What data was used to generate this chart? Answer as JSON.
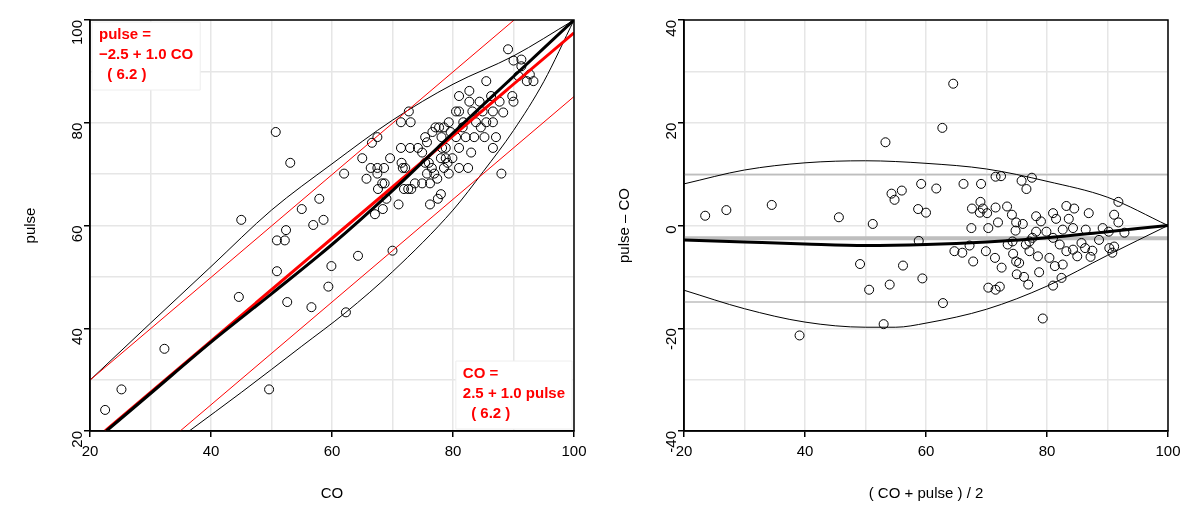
{
  "chart_data": [
    {
      "type": "scatter",
      "xlabel": "CO",
      "ylabel": "pulse",
      "xlim": [
        20,
        100
      ],
      "ylim": [
        20,
        100
      ],
      "xticks": [
        20,
        {
          "value": 30,
          "label": null
        },
        40,
        {
          "value": 50,
          "label": null
        },
        60,
        {
          "value": 70,
          "label": null
        },
        80,
        {
          "value": 90,
          "label": null
        },
        100
      ],
      "yticks": [
        20,
        {
          "value": 30,
          "label": null
        },
        40,
        {
          "value": 50,
          "label": null
        },
        60,
        {
          "value": 70,
          "label": null
        },
        80,
        {
          "value": 90,
          "label": null
        },
        100
      ],
      "grid": true,
      "annotations": [
        "pulse =\n−2.5 + 1.0 CO\n  ( 6.2 )",
        "CO =\n2.5 + 1.0 pulse\n  ( 6.2 )"
      ],
      "series": [
        {
          "type": "scatter",
          "marker": "circle",
          "color": "#000000",
          "x": [
            22.5,
            25.2,
            32.3,
            44.6,
            45.0,
            50.7,
            53.1,
            49.6,
            50.9,
            50.9,
            52.2,
            52.4,
            52.6,
            55.0,
            56.6,
            56.9,
            57.9,
            58.6,
            59.4,
            59.9,
            62.3,
            62.0,
            64.3,
            65.0,
            65.7,
            66.6,
            67.5,
            66.4,
            67.5,
            68.6,
            67.5,
            67.1,
            68.4,
            68.3,
            68.7,
            67.6,
            69.0,
            69.6,
            70.0,
            71.0,
            71.4,
            73.0,
            72.7,
            71.4,
            72.9,
            71.5,
            71.7,
            72.1,
            71.9,
            72.6,
            73.1,
            73.7,
            74.9,
            76.2,
            74.2,
            75.7,
            76.2,
            77.5,
            78.0,
            74.9,
            75.4,
            76.5,
            76.9,
            77.1,
            78.5,
            78.1,
            78.2,
            78.8,
            79.3,
            79.3,
            79.6,
            80.5,
            81.0,
            81.0,
            82.7,
            82.7,
            81.7,
            82.1,
            81.0,
            81.0,
            82.5,
            83.0,
            83.5,
            84.4,
            84.6,
            85.2,
            85.5,
            86.3,
            86.6,
            86.6,
            87.1,
            86.6,
            88.0,
            87.7,
            89.1,
            90.0,
            91.3,
            91.3,
            90.8,
            92.2,
            92.7,
            93.3,
            89.8,
            90.0,
            88.3,
            75.4,
            76.6,
            77.7,
            78.8,
            78.0,
            79.9,
            76.0,
            79.1,
            78.5,
            80.5,
            81.6,
            83.8,
            85.5,
            83.2,
            84.9,
            75.7,
            77.4
          ],
          "values": [
            24.1,
            28.1,
            36.0,
            46.1,
            61.1,
            78.2,
            72.2,
            28.1,
            51.1,
            57.1,
            57.1,
            59.1,
            45.1,
            63.2,
            44.1,
            60.1,
            65.2,
            61.1,
            48.1,
            52.1,
            43.1,
            70.1,
            54.1,
            73.1,
            69.1,
            76.1,
            77.2,
            71.2,
            71.2,
            71.2,
            70.1,
            62.2,
            63.2,
            68.2,
            68.2,
            67.1,
            65.2,
            73.1,
            55.1,
            64.1,
            80.1,
            80.1,
            82.2,
            75.1,
            75.1,
            72.2,
            71.2,
            71.2,
            67.1,
            67.1,
            67.1,
            68.2,
            68.2,
            68.2,
            75.1,
            76.2,
            64.1,
            65.2,
            66.1,
            74.2,
            72.2,
            71.2,
            70.1,
            79.1,
            79.1,
            77.2,
            75.1,
            73.1,
            70.1,
            80.1,
            78.2,
            82.2,
            82.2,
            85.2,
            86.2,
            84.1,
            80.1,
            77.2,
            75.1,
            71.2,
            71.2,
            74.2,
            77.2,
            84.1,
            79.1,
            77.2,
            88.1,
            85.2,
            82.2,
            80.1,
            77.2,
            75.1,
            70.1,
            84.1,
            94.3,
            92.1,
            92.3,
            91.0,
            89.1,
            88.1,
            89.4,
            88.1,
            85.2,
            84.1,
            82.0,
            77.2,
            78.2,
            79.1,
            75.1,
            73.1,
            73.1,
            72.2,
            72.2,
            71.2,
            77.2,
            79.1,
            80.1,
            80.1,
            82.2,
            82.2,
            70.1,
            69.1
          ]
        },
        {
          "type": "line",
          "color": "#000000",
          "x": [
            22.7,
            30,
            40,
            50,
            60,
            70,
            80,
            90,
            100
          ],
          "values": [
            20,
            27.3,
            37.3,
            46.7,
            56.3,
            66.8,
            78.0,
            89.0,
            100
          ]
        },
        {
          "type": "line",
          "color": "#ff0000",
          "x": [
            22.5,
            100
          ],
          "values": [
            20,
            97.5
          ]
        },
        {
          "type": "line",
          "color": "#ff0000",
          "x": [
            20,
            90.1
          ],
          "values": [
            29.9,
            100
          ]
        },
        {
          "type": "line",
          "color": "#ff0000",
          "x": [
            34.9,
            100
          ],
          "values": [
            20,
            85.1
          ]
        },
        {
          "type": "line",
          "color": "#000000",
          "x": [
            20,
            30,
            40,
            50,
            60,
            70,
            80,
            90,
            100
          ],
          "values": [
            29.9,
            41,
            52,
            63,
            72,
            80.5,
            87.5,
            93,
            100
          ]
        },
        {
          "type": "line",
          "color": "#000000",
          "x": [
            36.4,
            45,
            55,
            62.3,
            70,
            80,
            85,
            90,
            95,
            100
          ],
          "values": [
            20,
            27.5,
            36.5,
            43.1,
            51,
            63,
            70.5,
            78.5,
            88,
            100
          ]
        }
      ]
    },
    {
      "type": "scatter",
      "xlabel": "( CO + pulse ) / 2",
      "ylabel": "pulse – CO",
      "xlim": [
        20,
        100
      ],
      "ylim": [
        -40,
        40
      ],
      "xticks": [
        20,
        {
          "value": 30,
          "label": null
        },
        40,
        {
          "value": 50,
          "label": null
        },
        60,
        {
          "value": 70,
          "label": null
        },
        80,
        {
          "value": 90,
          "label": null
        },
        100
      ],
      "yticks": [
        -40,
        {
          "value": -30,
          "label": null
        },
        -20,
        {
          "value": -10,
          "label": null
        },
        0,
        {
          "value": 10,
          "label": null
        },
        20,
        {
          "value": 30,
          "label": null
        },
        40
      ],
      "grid": true,
      "ref_lines": [
        {
          "axis": "y",
          "value": -2.5,
          "color": "#bebebe"
        },
        {
          "axis": "y",
          "value": 9.9,
          "color": "#bebebe"
        },
        {
          "axis": "y",
          "value": -14.9,
          "color": "#bebebe"
        }
      ],
      "series": [
        {
          "type": "scatter",
          "marker": "circle",
          "color": "#000000",
          "x": [
            23.5,
            27.0,
            34.5,
            45.6,
            51.2,
            39.1,
            49.1,
            50.6,
            53.0,
            53.3,
            54.3,
            54.8,
            56.0,
            54.0,
            56.2,
            58.7,
            60.0,
            59.2,
            59.4,
            61.7,
            62.7,
            64.5,
            62.8,
            66.2,
            64.7,
            66.0,
            67.2,
            67.8,
            67.6,
            69.0,
            69.1,
            69.4,
            68.9,
            70.1,
            71.5,
            72.4,
            71.5,
            73.4,
            71.9,
            70.3,
            67.5,
            69.9,
            71.4,
            72.5,
            70.3,
            71.5,
            72.2,
            75.8,
            76.6,
            77.5,
            74.2,
            74.9,
            76.0,
            78.2,
            79.0,
            74.8,
            73.5,
            74.4,
            74.9,
            75.4,
            76.5,
            77.1,
            77.6,
            78.5,
            75.0,
            76.2,
            76.9,
            78.7,
            79.3,
            81.0,
            81.5,
            83.2,
            84.5,
            83.6,
            82.6,
            84.3,
            81.0,
            82.1,
            83.2,
            84.3,
            80.4,
            81.3,
            82.6,
            81.0,
            82.4,
            85.0,
            86.3,
            87.2,
            87.5,
            85.7,
            86.4,
            86.9,
            88.6,
            89.2,
            90.3,
            90.8,
            91.1,
            91.1,
            91.8,
            91.8,
            92.8,
            90.2,
            74.3,
            77.1,
            79.9,
            78.2,
            58.8
          ],
          "values": [
            1.9,
            3.0,
            4.0,
            1.6,
            0.3,
            -21.4,
            -7.5,
            -12.5,
            -19.2,
            16.2,
            6.2,
            5.0,
            6.8,
            -11.5,
            -7.8,
            3.2,
            2.5,
            8.1,
            -10.3,
            7.2,
            19.0,
            27.6,
            -15.1,
            8.1,
            -5.0,
            -5.3,
            -3.9,
            -7.0,
            3.3,
            4.6,
            8.1,
            3.3,
            2.5,
            2.4,
            9.5,
            9.6,
            3.5,
            3.7,
            0.6,
            -0.5,
            -0.5,
            -5.0,
            -6.3,
            -8.2,
            -12.1,
            -12.5,
            -11.9,
            8.7,
            7.1,
            9.3,
            2.1,
            0.6,
            0.3,
            1.8,
            0.8,
            -1.0,
            -3.7,
            -5.5,
            -7.0,
            -7.3,
            -3.7,
            -5.0,
            -2.4,
            -6.0,
            -9.5,
            -10.0,
            -11.5,
            -9.1,
            -18.1,
            2.4,
            1.3,
            3.8,
            3.3,
            1.3,
            -0.8,
            -0.5,
            -2.4,
            -3.7,
            -5.0,
            -4.7,
            -6.3,
            -7.9,
            -7.6,
            -11.7,
            -10.2,
            -6.0,
            -4.4,
            -6.1,
            -4.9,
            -3.4,
            -0.8,
            2.4,
            -2.8,
            -0.5,
            -4.4,
            -5.3,
            -4.1,
            2.1,
            0.6,
            4.6,
            -1.4,
            -1.2,
            -3.1,
            -3.1,
            -1.2,
            -1.2,
            -3.0
          ]
        },
        {
          "type": "line",
          "color": "#000000",
          "x": [
            20,
            30,
            40,
            50,
            60,
            70,
            80,
            90,
            100
          ],
          "values": [
            -2.8,
            -3.2,
            -3.6,
            -3.9,
            -3.7,
            -3.2,
            -2.4,
            -1.2,
            0
          ]
        },
        {
          "type": "line",
          "color": "#000000",
          "x": [
            20,
            30,
            40,
            50,
            60,
            70,
            80,
            90,
            100
          ],
          "values": [
            8.1,
            10.8,
            12.2,
            12.6,
            12.1,
            11.0,
            8.6,
            5.5,
            0
          ]
        },
        {
          "type": "line",
          "color": "#000000",
          "x": [
            20,
            30,
            40,
            50,
            55,
            60,
            70,
            80,
            90,
            100
          ],
          "values": [
            -12.6,
            -16.2,
            -18.8,
            -19.8,
            -19.8,
            -19.0,
            -16.3,
            -11.8,
            -5.8,
            0
          ]
        }
      ]
    }
  ]
}
